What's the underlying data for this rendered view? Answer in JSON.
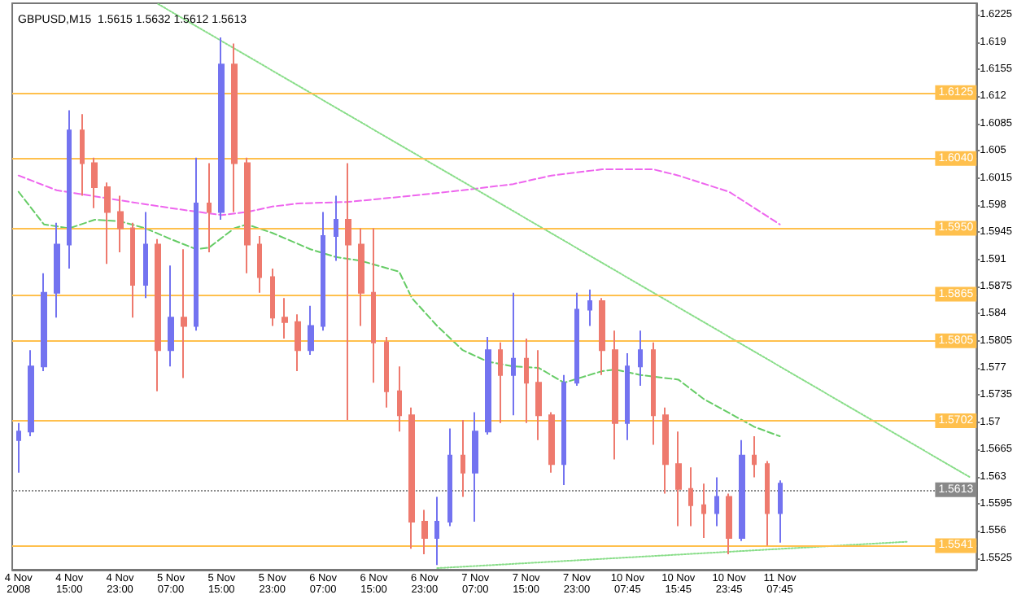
{
  "chart_data": {
    "type": "candlestick",
    "title": "GBPUSD,M15  1.5615 1.5632 1.5612 1.5613",
    "categories": [
      "4 Nov 2008",
      null,
      null,
      null,
      "4 Nov 15:00",
      null,
      null,
      null,
      "4 Nov 23:00",
      null,
      null,
      null,
      "5 Nov 07:00",
      null,
      null,
      null,
      "5 Nov 15:00",
      null,
      null,
      null,
      "5 Nov 23:00",
      null,
      null,
      null,
      "6 Nov 07:00",
      null,
      null,
      null,
      "6 Nov 15:00",
      null,
      null,
      null,
      "6 Nov 23:00",
      null,
      null,
      null,
      "7 Nov 07:00",
      null,
      null,
      null,
      "7 Nov 15:00",
      null,
      null,
      null,
      "7 Nov 23:00",
      null,
      null,
      null,
      "10 Nov 07:45",
      null,
      null,
      null,
      "10 Nov 15:45",
      null,
      null,
      null,
      "10 Nov 23:45",
      null,
      null,
      null,
      "11 Nov 07:45",
      null,
      null,
      null,
      null,
      null,
      null,
      null,
      null,
      null,
      null,
      null,
      null,
      null,
      null,
      null
    ],
    "ohlc": [
      [
        1.5677,
        1.5699,
        1.5635,
        1.5688
      ],
      [
        1.5688,
        1.5793,
        1.5682,
        1.5772
      ],
      [
        1.5772,
        1.5892,
        1.5766,
        1.5867
      ],
      [
        1.5867,
        1.5957,
        1.5835,
        1.5929
      ],
      [
        1.5929,
        1.6102,
        1.5898,
        1.6076
      ],
      [
        1.6076,
        1.6097,
        1.5992,
        1.6034
      ],
      [
        1.6034,
        1.6041,
        1.5976,
        1.6003
      ],
      [
        1.6003,
        1.6009,
        1.5904,
        1.5971
      ],
      [
        1.5971,
        1.5992,
        1.5919,
        1.595
      ],
      [
        1.595,
        1.5957,
        1.5835,
        1.5877
      ],
      [
        1.5877,
        1.5971,
        1.586,
        1.5929
      ],
      [
        1.5929,
        1.5936,
        1.574,
        1.5793
      ],
      [
        1.5793,
        1.5902,
        1.5772,
        1.5835
      ],
      [
        1.5835,
        1.5923,
        1.5757,
        1.5824
      ],
      [
        1.5824,
        1.6041,
        1.5818,
        1.5982
      ],
      [
        1.5982,
        1.6034,
        1.5919,
        1.5971
      ],
      [
        1.5971,
        1.6196,
        1.5961,
        1.6161
      ],
      [
        1.6161,
        1.6188,
        1.5971,
        1.6034
      ],
      [
        1.6034,
        1.6041,
        1.5892,
        1.5929
      ],
      [
        1.5929,
        1.594,
        1.5867,
        1.5887
      ],
      [
        1.5887,
        1.5898,
        1.5824,
        1.5835
      ],
      [
        1.5835,
        1.586,
        1.5808,
        1.5829
      ],
      [
        1.5829,
        1.5839,
        1.5766,
        1.5793
      ],
      [
        1.5793,
        1.585,
        1.5787,
        1.5824
      ],
      [
        1.5824,
        1.5971,
        1.5818,
        1.594
      ],
      [
        1.594,
        1.5992,
        1.5908,
        1.5961
      ],
      [
        1.5961,
        1.6034,
        1.5703,
        1.5929
      ],
      [
        1.5929,
        1.595,
        1.5824,
        1.5867
      ],
      [
        1.5867,
        1.595,
        1.5751,
        1.5803
      ],
      [
        1.5803,
        1.581,
        1.5719,
        1.574
      ],
      [
        1.574,
        1.5772,
        1.5688,
        1.5709
      ],
      [
        1.5709,
        1.5719,
        1.5537,
        1.5572
      ],
      [
        1.5572,
        1.5587,
        1.553,
        1.5551
      ],
      [
        1.5551,
        1.5604,
        1.5516,
        1.5572
      ],
      [
        1.5572,
        1.5692,
        1.5566,
        1.5657
      ],
      [
        1.5657,
        1.5703,
        1.5604,
        1.5635
      ],
      [
        1.5635,
        1.5713,
        1.5572,
        1.5688
      ],
      [
        1.5688,
        1.581,
        1.5684,
        1.5793
      ],
      [
        1.5793,
        1.5803,
        1.5699,
        1.5761
      ],
      [
        1.5761,
        1.5867,
        1.5709,
        1.5782
      ],
      [
        1.5782,
        1.5808,
        1.5699,
        1.5751
      ],
      [
        1.5751,
        1.5793,
        1.5677,
        1.5709
      ],
      [
        1.5709,
        1.5713,
        1.5635,
        1.5646
      ],
      [
        1.5646,
        1.5761,
        1.5619,
        1.5751
      ],
      [
        1.5751,
        1.5867,
        1.5747,
        1.5845
      ],
      [
        1.5845,
        1.5871,
        1.5824,
        1.5856
      ],
      [
        1.5856,
        1.586,
        1.5761,
        1.5793
      ],
      [
        1.5793,
        1.5818,
        1.5652,
        1.5699
      ],
      [
        1.5699,
        1.5789,
        1.5677,
        1.5772
      ],
      [
        1.5772,
        1.5818,
        1.5747,
        1.5793
      ],
      [
        1.5793,
        1.5803,
        1.5671,
        1.5709
      ],
      [
        1.5709,
        1.5719,
        1.5608,
        1.5646
      ],
      [
        1.5646,
        1.5688,
        1.5566,
        1.5614
      ],
      [
        1.5614,
        1.5642,
        1.5566,
        1.5593
      ],
      [
        1.5593,
        1.5621,
        1.5551,
        1.5583
      ],
      [
        1.5583,
        1.5629,
        1.5566,
        1.5604
      ],
      [
        1.5604,
        1.5608,
        1.553,
        1.5551
      ],
      [
        1.5551,
        1.5677,
        1.5547,
        1.5657
      ],
      [
        1.5657,
        1.5682,
        1.5629,
        1.5646
      ],
      [
        1.5646,
        1.565,
        1.5541,
        1.5583
      ],
      [
        1.5583,
        1.5625,
        1.5545,
        1.5621
      ],
      null,
      null,
      null,
      null,
      null,
      null,
      null,
      null,
      null,
      null,
      null,
      null,
      null,
      null,
      null
    ],
    "colors": [
      "#7373f0",
      "#7373f0",
      "#7373f0",
      "#7373f0",
      "#7373f0",
      "#ee7a6e",
      "#ee7a6e",
      "#ee7a6e",
      "#ee7a6e",
      "#ee7a6e",
      "#7373f0",
      "#ee7a6e",
      "#7373f0",
      "#ee7a6e",
      "#7373f0",
      "#ee7a6e",
      "#7373f0",
      "#ee7a6e",
      "#ee7a6e",
      "#ee7a6e",
      "#ee7a6e",
      "#ee7a6e",
      "#ee7a6e",
      "#7373f0",
      "#7373f0",
      "#7373f0",
      "#ee7a6e",
      "#ee7a6e",
      "#ee7a6e",
      "#ee7a6e",
      "#ee7a6e",
      "#ee7a6e",
      "#ee7a6e",
      "#7373f0",
      "#7373f0",
      "#ee7a6e",
      "#7373f0",
      "#7373f0",
      "#ee7a6e",
      "#7373f0",
      "#ee7a6e",
      "#ee7a6e",
      "#ee7a6e",
      "#7373f0",
      "#7373f0",
      "#7373f0",
      "#ee7a6e",
      "#ee7a6e",
      "#7373f0",
      "#7373f0",
      "#ee7a6e",
      "#ee7a6e",
      "#ee7a6e",
      "#ee7a6e",
      "#ee7a6e",
      "#7373f0",
      "#ee7a6e",
      "#7373f0",
      "#ee7a6e",
      "#ee7a6e",
      "#7373f0",
      null,
      null,
      null,
      null,
      null,
      null,
      null,
      null,
      null,
      null,
      null,
      null,
      null,
      null,
      null
    ],
    "series": [
      {
        "type": "line",
        "color": "#ee66ee",
        "line_style": "dashed",
        "values": [
          1.6018,
          null,
          null,
          1.5999,
          null,
          null,
          null,
          null,
          1.5986,
          null,
          null,
          null,
          1.5976,
          null,
          null,
          null,
          1.5967,
          null,
          1.5971,
          null,
          1.5978,
          null,
          1.5982,
          null,
          null,
          null,
          1.5984,
          null,
          null,
          null,
          null,
          1.5992,
          null,
          null,
          null,
          1.5999,
          null,
          null,
          null,
          1.6007,
          null,
          null,
          1.6018,
          null,
          null,
          null,
          1.6026,
          null,
          null,
          null,
          1.6026,
          null,
          1.6018,
          null,
          null,
          null,
          1.5997,
          null,
          null,
          null,
          1.5955,
          null,
          null,
          null,
          null,
          null,
          null,
          null,
          null,
          null,
          null,
          null,
          null,
          null,
          null,
          null
        ]
      },
      {
        "type": "line",
        "color": "#66cc66",
        "line_style": "dashed",
        "values": [
          1.5997,
          null,
          1.5955,
          null,
          1.595,
          null,
          1.5961,
          null,
          1.5959,
          null,
          1.595,
          null,
          1.5936,
          null,
          1.5923,
          1.5925,
          null,
          1.595,
          1.5955,
          null,
          1.5944,
          null,
          null,
          1.5923,
          null,
          1.5913,
          null,
          1.5908,
          null,
          null,
          1.5894,
          1.586,
          null,
          1.5824,
          null,
          1.5793,
          null,
          1.5778,
          null,
          1.5772,
          null,
          1.577,
          null,
          1.5751,
          null,
          null,
          1.5766,
          1.5768,
          null,
          1.5761,
          null,
          null,
          1.5755,
          null,
          1.573,
          null,
          null,
          1.5703,
          1.5694,
          null,
          1.5682,
          null,
          null,
          null,
          null,
          null,
          null,
          null,
          null,
          null,
          null,
          null,
          null,
          null,
          null,
          null
        ]
      },
      {
        "type": "line",
        "color": "#88dd88",
        "line_style": "dotted",
        "values": [
          null,
          null,
          null,
          null,
          null,
          null,
          null,
          null,
          null,
          null,
          null,
          1.6239,
          null,
          null,
          null,
          null,
          null,
          null,
          null,
          null,
          null,
          null,
          null,
          null,
          null,
          null,
          null,
          null,
          null,
          null,
          null,
          null,
          null,
          null,
          null,
          null,
          null,
          null,
          null,
          null,
          null,
          null,
          null,
          null,
          null,
          null,
          null,
          null,
          null,
          null,
          null,
          null,
          null,
          null,
          null,
          null,
          null,
          null,
          null,
          null,
          null,
          null,
          null,
          null,
          null,
          null,
          null,
          null,
          null,
          null,
          null,
          null,
          null,
          null,
          null,
          1.5629
        ]
      },
      {
        "type": "line",
        "color": "#88dd88",
        "line_style": "dotted",
        "values": [
          null,
          null,
          null,
          null,
          null,
          null,
          null,
          null,
          null,
          null,
          null,
          null,
          null,
          null,
          null,
          null,
          null,
          null,
          null,
          null,
          null,
          null,
          null,
          null,
          null,
          null,
          null,
          null,
          null,
          null,
          null,
          null,
          null,
          1.5512,
          null,
          null,
          null,
          null,
          null,
          null,
          null,
          null,
          null,
          null,
          null,
          null,
          null,
          null,
          null,
          null,
          null,
          null,
          null,
          null,
          null,
          null,
          null,
          null,
          null,
          null,
          null,
          null,
          null,
          null,
          null,
          null,
          null,
          null,
          null,
          null,
          1.5546,
          null,
          null,
          null,
          null,
          null
        ]
      }
    ],
    "ref_lines": [
      {
        "axis": "y",
        "value": 1.6125,
        "label": "1.6125",
        "color": "#ffc04d"
      },
      {
        "axis": "y",
        "value": 1.604,
        "label": "1.6040",
        "color": "#ffc04d"
      },
      {
        "axis": "y",
        "value": 1.595,
        "label": "1.5950",
        "color": "#ffc04d"
      },
      {
        "axis": "y",
        "value": 1.5865,
        "label": "1.5865",
        "color": "#ffc04d"
      },
      {
        "axis": "y",
        "value": 1.5805,
        "label": "1.5805",
        "color": "#ffc04d"
      },
      {
        "axis": "y",
        "value": 1.5702,
        "label": "1.5702",
        "color": "#ffc04d"
      },
      {
        "axis": "y",
        "value": 1.5613,
        "label": "1.5613",
        "color": "#888888",
        "line_style": "dotted"
      },
      {
        "axis": "y",
        "value": 1.5541,
        "label": "1.5541",
        "color": "#ffc04d"
      }
    ],
    "ylim": [
      1.551,
      1.624
    ],
    "yticks": [
      1.6225,
      1.619,
      1.6155,
      1.612,
      1.6085,
      1.605,
      1.6015,
      1.598,
      1.5945,
      1.591,
      1.5875,
      1.584,
      1.5805,
      1.577,
      1.5735,
      1.57,
      1.5665,
      1.563,
      1.5595,
      1.556,
      1.5525
    ],
    "marker": "none",
    "grid": false
  }
}
